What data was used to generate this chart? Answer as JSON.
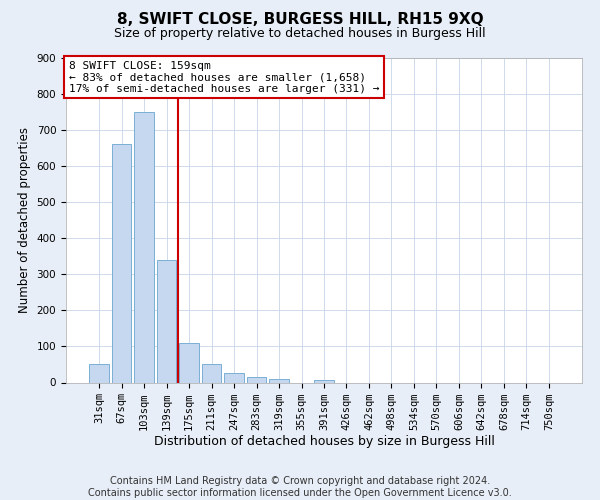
{
  "title": "8, SWIFT CLOSE, BURGESS HILL, RH15 9XQ",
  "subtitle": "Size of property relative to detached houses in Burgess Hill",
  "xlabel": "Distribution of detached houses by size in Burgess Hill",
  "ylabel": "Number of detached properties",
  "footer_line1": "Contains HM Land Registry data © Crown copyright and database right 2024.",
  "footer_line2": "Contains public sector information licensed under the Open Government Licence v3.0.",
  "categories": [
    "31sqm",
    "67sqm",
    "103sqm",
    "139sqm",
    "175sqm",
    "211sqm",
    "247sqm",
    "283sqm",
    "319sqm",
    "355sqm",
    "391sqm",
    "426sqm",
    "462sqm",
    "498sqm",
    "534sqm",
    "570sqm",
    "606sqm",
    "642sqm",
    "678sqm",
    "714sqm",
    "750sqm"
  ],
  "bar_values": [
    50,
    660,
    750,
    340,
    110,
    50,
    25,
    15,
    10,
    0,
    8,
    0,
    0,
    0,
    0,
    0,
    0,
    0,
    0,
    0,
    0
  ],
  "bar_color": "#c5d8f0",
  "bar_edge_color": "#7aafd4",
  "vline_x": 3.5,
  "vline_color": "#cc0000",
  "annotation_box_text": "8 SWIFT CLOSE: 159sqm\n← 83% of detached houses are smaller (1,658)\n17% of semi-detached houses are larger (331) →",
  "annotation_box_color": "#cc0000",
  "annotation_box_fill": "white",
  "annotation_fontsize": 8,
  "ylim": [
    0,
    900
  ],
  "yticks": [
    0,
    100,
    200,
    300,
    400,
    500,
    600,
    700,
    800,
    900
  ],
  "title_fontsize": 11,
  "subtitle_fontsize": 9,
  "xlabel_fontsize": 9,
  "ylabel_fontsize": 8.5,
  "tick_fontsize": 7.5,
  "footer_fontsize": 7,
  "fig_bg_color": "#e8eef7",
  "plot_bg_color": "#ffffff"
}
